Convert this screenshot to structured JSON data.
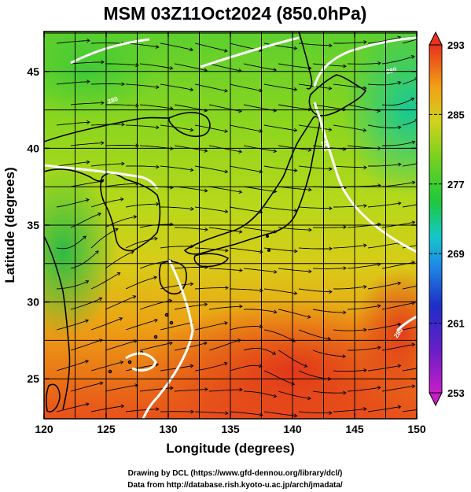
{
  "title": "MSM 03Z11Oct2024 (850.0hPa)",
  "x_axis": {
    "label": "Longitude (degrees)",
    "range": [
      120,
      150
    ],
    "ticks": [
      120,
      125,
      130,
      135,
      140,
      145,
      150
    ]
  },
  "y_axis": {
    "label": "Latitude  (degrees)",
    "range": [
      22.4,
      47.6
    ],
    "ticks": [
      25,
      30,
      35,
      40,
      45
    ]
  },
  "colorbar": {
    "range": [
      253,
      293
    ],
    "ticks": [
      253,
      261,
      269,
      277,
      285,
      293
    ],
    "extend": "both"
  },
  "contour_labels": [
    "280",
    "280",
    "280",
    "280"
  ],
  "credits": {
    "line1": "Drawing by DCL (https://www.gfd-dennou.org/library/dcl/)",
    "line2": "Data from http://database.rish.kyoto-u.ac.jp/arch/jmadata/"
  },
  "colors": {
    "cold": "#1a9a3a",
    "mild": "#9ad81a",
    "warm": "#f0a010",
    "hot": "#e83c1a",
    "contour": "#ffffff",
    "coast": "#000000"
  },
  "chart_data": {
    "type": "heatmap",
    "title": "MSM 03Z11Oct2024 (850.0hPa)",
    "xlabel": "Longitude (degrees)",
    "ylabel": "Latitude  (degrees)",
    "xlim": [
      120,
      150
    ],
    "ylim": [
      22.4,
      47.6
    ],
    "colorbar_range": [
      253,
      293
    ],
    "grid": true,
    "overlays": [
      "streamlines",
      "280 contour (white)",
      "coastlines"
    ],
    "approx_field_samples": [
      {
        "lon": 123,
        "lat": 46,
        "value": 280
      },
      {
        "lon": 135,
        "lat": 45,
        "value": 281
      },
      {
        "lon": 147,
        "lat": 45,
        "value": 276
      },
      {
        "lon": 148,
        "lat": 40,
        "value": 275
      },
      {
        "lon": 122,
        "lat": 33,
        "value": 277
      },
      {
        "lon": 130,
        "lat": 37,
        "value": 279
      },
      {
        "lon": 138,
        "lat": 35,
        "value": 283
      },
      {
        "lon": 128,
        "lat": 28,
        "value": 284
      },
      {
        "lon": 138,
        "lat": 27,
        "value": 289
      },
      {
        "lon": 145,
        "lat": 26,
        "value": 288
      },
      {
        "lon": 130,
        "lat": 24,
        "value": 287
      },
      {
        "lon": 149,
        "lat": 30,
        "value": 288
      }
    ]
  }
}
